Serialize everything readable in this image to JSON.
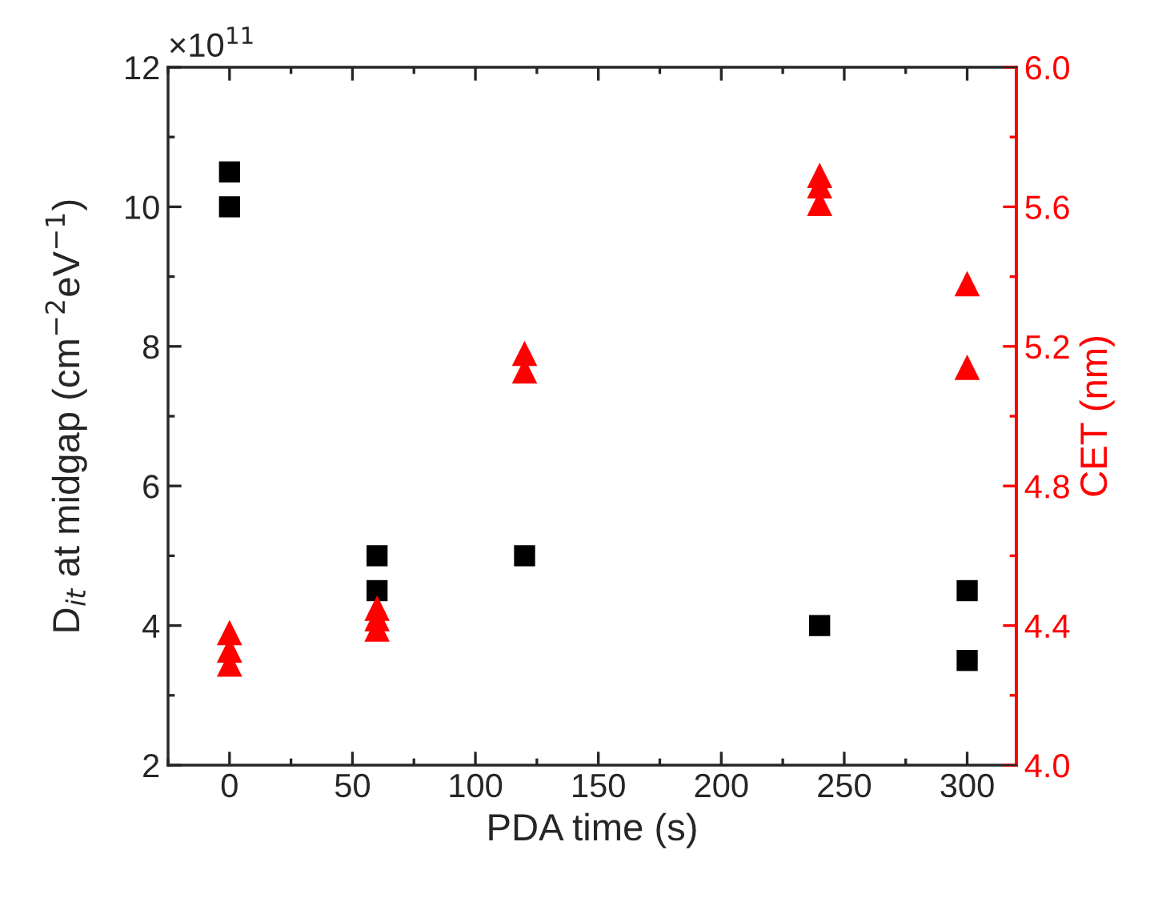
{
  "chart_data": {
    "type": "scatter",
    "xlabel": "PDA time (s)",
    "ylabel": "D$_{it}$ at midgap (cm$^{−2}$eV$^{−1}$)",
    "y2label": "CET (nm)",
    "annotations": [
      "×10$^{11}$"
    ],
    "xlim": [
      -25,
      320
    ],
    "xticks": [
      0,
      50,
      100,
      150,
      200,
      250,
      300
    ],
    "ylim": [
      2,
      12
    ],
    "yticks": [
      2,
      4,
      6,
      8,
      10,
      12
    ],
    "y2lim": [
      4.0,
      6.0
    ],
    "y2ticks": [
      {
        "value": 4.0,
        "label": "4.0"
      },
      {
        "value": 4.4,
        "label": "4.4"
      },
      {
        "value": 4.8,
        "label": "4.8"
      },
      {
        "value": 5.2,
        "label": "5.2"
      },
      {
        "value": 5.6,
        "label": "5.6"
      },
      {
        "value": 6.0,
        "label": "6.0"
      }
    ],
    "grid": false,
    "legend": false,
    "series": [
      {
        "color": "#000000",
        "marker": "square",
        "x": [
          0,
          0,
          60,
          60,
          120,
          240,
          300,
          300
        ],
        "values": [
          10.5,
          10,
          5,
          4.5,
          5,
          4,
          4.5,
          3.5
        ]
      },
      {
        "color": "#ff0000",
        "marker": "triangle",
        "axis": "y2",
        "x": [
          0,
          0,
          0,
          60,
          60,
          60,
          120,
          120,
          240,
          240,
          240,
          300,
          300
        ],
        "values": [
          4.38,
          4.33,
          4.29,
          4.45,
          4.42,
          4.39,
          5.18,
          5.13,
          5.69,
          5.66,
          5.61,
          5.38,
          5.14
        ]
      }
    ]
  }
}
